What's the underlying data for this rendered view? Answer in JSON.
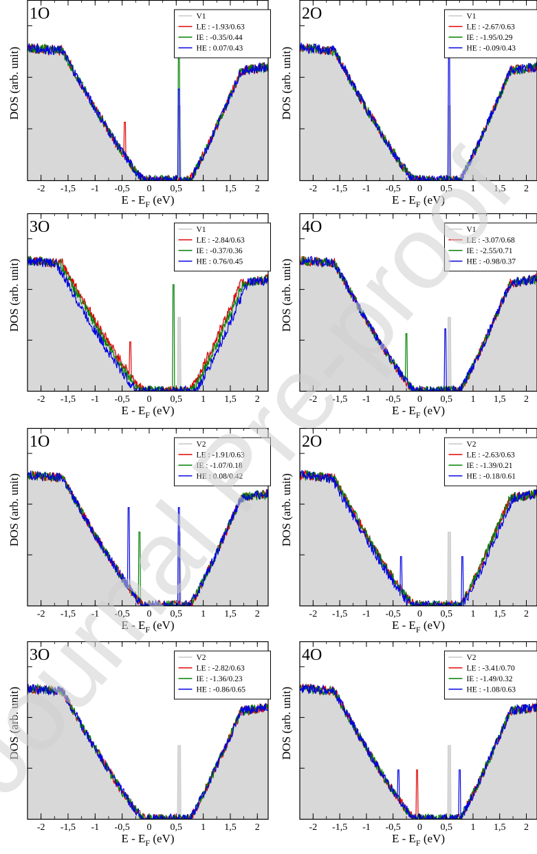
{
  "chart_data": [
    {
      "type": "area",
      "panel_label": "1O",
      "xlabel": "E - E",
      "xlabel_sub": "F",
      "xlabel_unit": " (eV)",
      "ylabel": "DOS (arb. unit)",
      "xticks": [
        "-2",
        "-1,5",
        "-1",
        "-0,5",
        "0",
        "0,5",
        "1",
        "1,5",
        "2"
      ],
      "xlim": [
        -2.25,
        2.2
      ],
      "legend": [
        {
          "name": "V1",
          "color": "#c8c8c8"
        },
        {
          "name": "LE : -1.93/0.63",
          "color": "#e00000"
        },
        {
          "name": "IE :  -0.35/0.44",
          "color": "#008000"
        },
        {
          "name": "HE :  0.07/0.43",
          "color": "#0000e0"
        }
      ],
      "spikes": {
        "LE": [
          -0.45
        ],
        "IE": [
          0.55
        ],
        "HE": [
          0.55
        ]
      },
      "spike_heights": {
        "LE": 0.35,
        "IE": 0.78,
        "HE": 0.55
      },
      "shift": {
        "LE": 0,
        "IE": 0,
        "HE": 0
      }
    },
    {
      "type": "area",
      "panel_label": "2O",
      "xlabel": "E - E",
      "xlabel_sub": "F",
      "xlabel_unit": " (eV)",
      "ylabel": "DOS (arb. unit)",
      "xticks": [
        "-2",
        "-1,5",
        "-1",
        "-0,5",
        "0",
        "0,5",
        "1",
        "1,5",
        "2"
      ],
      "xlim": [
        -2.25,
        2.2
      ],
      "legend": [
        {
          "name": "V1",
          "color": "#c8c8c8"
        },
        {
          "name": "LE : -2.67/0.63",
          "color": "#e00000"
        },
        {
          "name": "IE : -1.95/0.29",
          "color": "#008000"
        },
        {
          "name": "HE : -0.09/0.43",
          "color": "#0000e0"
        }
      ],
      "spikes": {
        "LE": [],
        "IE": [],
        "HE": [
          0.55
        ]
      },
      "spike_heights": {
        "LE": 0,
        "IE": 0,
        "HE": 0.78
      },
      "shift": {
        "LE": 0,
        "IE": 0,
        "HE": 0
      }
    },
    {
      "type": "area",
      "panel_label": "3O",
      "xlabel": "E - E",
      "xlabel_sub": "F",
      "xlabel_unit": " (eV)",
      "ylabel": "DOS (arb. unit)",
      "xticks": [
        "-2",
        "-1,5",
        "-1",
        "-0,5",
        "0",
        "0,5",
        "1",
        "1,5",
        "2"
      ],
      "xlim": [
        -2.25,
        2.2
      ],
      "legend": [
        {
          "name": "V1",
          "color": "#c8c8c8"
        },
        {
          "name": "LE : -2.84/0.63",
          "color": "#e00000"
        },
        {
          "name": "IE :  -0.37/0.36",
          "color": "#008000"
        },
        {
          "name": "HE :  0.76/0.45",
          "color": "#0000e0"
        }
      ],
      "spikes": {
        "LE": [
          -0.35
        ],
        "IE": [
          0.45
        ],
        "HE": []
      },
      "spike_heights": {
        "LE": 0.3,
        "IE": 0.65,
        "HE": 0
      },
      "shift": {
        "LE": 0,
        "IE": 0.05,
        "HE": 0.12
      }
    },
    {
      "type": "area",
      "panel_label": "4O",
      "xlabel": "E - E",
      "xlabel_sub": "F",
      "xlabel_unit": " (eV)",
      "ylabel": "DOS (arb. unit)",
      "xticks": [
        "-2",
        "-1,5",
        "-1",
        "-0,5",
        "0",
        "0,5",
        "1",
        "1,5",
        "2"
      ],
      "xlim": [
        -2.25,
        2.2
      ],
      "legend": [
        {
          "name": "V1",
          "color": "#c8c8c8"
        },
        {
          "name": "LE : -3.07/0.68",
          "color": "#e00000"
        },
        {
          "name": "IE : -2.55/0.71",
          "color": "#008000"
        },
        {
          "name": "HE : -0.98/0.37",
          "color": "#0000e0"
        }
      ],
      "spikes": {
        "LE": [],
        "IE": [
          -0.25
        ],
        "HE": [
          0.48
        ]
      },
      "spike_heights": {
        "LE": 0,
        "IE": 0.35,
        "HE": 0.38
      },
      "shift": {
        "LE": 0,
        "IE": 0,
        "HE": 0
      }
    },
    {
      "type": "area",
      "panel_label": "1O",
      "xlabel": "E - E",
      "xlabel_sub": "F",
      "xlabel_unit": " (eV)",
      "ylabel": "DOS (arb. unit)",
      "xticks": [
        "-2",
        "-1,5",
        "-1",
        "-0,5",
        "0",
        "0,5",
        "1",
        "1,5",
        "2"
      ],
      "xlim": [
        -2.25,
        2.2
      ],
      "legend": [
        {
          "name": "V2",
          "color": "#c8c8c8"
        },
        {
          "name": "LE : -1.91/0.63",
          "color": "#e00000"
        },
        {
          "name": "IE : -1.07/0.18",
          "color": "#008000"
        },
        {
          "name": "HE :  0.08/0.42",
          "color": "#0000e0"
        }
      ],
      "spikes": {
        "LE": [],
        "IE": [
          -0.18
        ],
        "HE": [
          -0.38,
          0.55
        ]
      },
      "spike_heights": {
        "LE": 0,
        "IE": 0.45,
        "HE": 0.6
      },
      "shift": {
        "LE": 0,
        "IE": 0,
        "HE": 0
      }
    },
    {
      "type": "area",
      "panel_label": "2O",
      "xlabel": "E - E",
      "xlabel_sub": "F",
      "xlabel_unit": " (eV)",
      "ylabel": "DOS (arb. unit)",
      "xticks": [
        "-2",
        "-1,5",
        "-1",
        "-0,5",
        "0",
        "0,5",
        "1",
        "1,5",
        "2"
      ],
      "xlim": [
        -2.25,
        2.2
      ],
      "legend": [
        {
          "name": "V2",
          "color": "#c8c8c8"
        },
        {
          "name": "LE : -2.63/0.63",
          "color": "#e00000"
        },
        {
          "name": "IE : -1.39/0.21",
          "color": "#008000"
        },
        {
          "name": "HE : -0.18/0.61",
          "color": "#0000e0"
        }
      ],
      "spikes": {
        "LE": [],
        "IE": [],
        "HE": [
          -0.35,
          0.8
        ]
      },
      "spike_heights": {
        "LE": 0,
        "IE": 0,
        "HE": 0.3
      },
      "shift": {
        "LE": 0,
        "IE": 0,
        "HE": 0.05
      }
    },
    {
      "type": "area",
      "panel_label": "3O",
      "xlabel": "E - E",
      "xlabel_sub": "F",
      "xlabel_unit": " (eV)",
      "ylabel": "DOS (arb. unit)",
      "xticks": [
        "-2",
        "-1,5",
        "-1",
        "-0,5",
        "0",
        "0,5",
        "1",
        "1,5",
        "2"
      ],
      "xlim": [
        -2.25,
        2.2
      ],
      "legend": [
        {
          "name": "V2",
          "color": "#c8c8c8"
        },
        {
          "name": "LE : -2.82/0.63",
          "color": "#e00000"
        },
        {
          "name": "IE : -1.36/0.23",
          "color": "#008000"
        },
        {
          "name": "HE : -0.86/0.65",
          "color": "#0000e0"
        }
      ],
      "spikes": {
        "LE": [],
        "IE": [],
        "HE": []
      },
      "spike_heights": {
        "LE": 0,
        "IE": 0,
        "HE": 0
      },
      "shift": {
        "LE": 0,
        "IE": 0,
        "HE": 0
      }
    },
    {
      "type": "area",
      "panel_label": "4O",
      "xlabel": "E - E",
      "xlabel_sub": "F",
      "xlabel_unit": " (eV)",
      "ylabel": "DOS (arb. unit)",
      "xticks": [
        "-2",
        "-1,5",
        "-1",
        "-0,5",
        "0",
        "0,5",
        "1",
        "1,5",
        "2"
      ],
      "xlim": [
        -2.25,
        2.2
      ],
      "legend": [
        {
          "name": "V2",
          "color": "#c8c8c8"
        },
        {
          "name": "LE : -3.41/0.70",
          "color": "#e00000"
        },
        {
          "name": "IE : -1.49/0.32",
          "color": "#008000"
        },
        {
          "name": "HE : -1.08/0.63",
          "color": "#0000e0"
        }
      ],
      "spikes": {
        "LE": [
          -0.05
        ],
        "IE": [],
        "HE": [
          -0.4,
          0.75
        ]
      },
      "spike_heights": {
        "LE": 0.3,
        "IE": 0,
        "HE": 0.3
      },
      "shift": {
        "LE": 0,
        "IE": 0,
        "HE": 0
      }
    }
  ],
  "watermark": {
    "text": "Journal Pre-proof",
    "color": "#d0d0d0"
  }
}
